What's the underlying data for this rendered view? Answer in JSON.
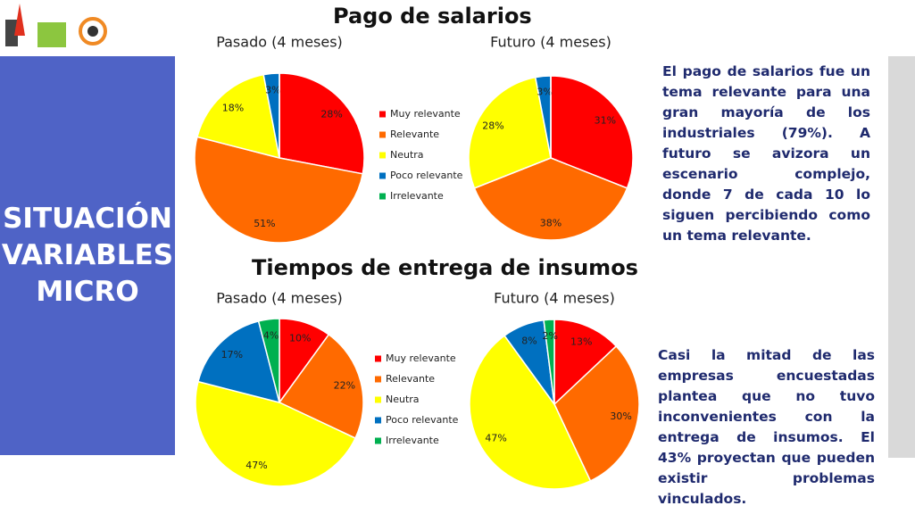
{
  "slide": {
    "side_title": [
      "SITUACIÓN",
      "VARIABLES",
      "MICRO"
    ],
    "sections": [
      "Pago de salarios",
      "Tiempos de entrega de insumos"
    ],
    "paragraphs": [
      "El pago de salarios fue un tema relevante para una gran mayoría de los industriales (79%). A futuro se avizora un escenario complejo, donde 7 de cada 10 lo siguen percibiendo como un tema relevante.",
      "Casi la mitad de las empresas encuestadas plantea que no tuvo inconvenientes con la entrega de insumos. El 43% proyectan que pueden existir problemas vinculados."
    ]
  },
  "chart_data": [
    {
      "type": "pie",
      "title": "Pasado (4 meses)",
      "categories": [
        "Muy relevante",
        "Relevante",
        "Neutra",
        "Poco relevante",
        "Irrelevante"
      ],
      "values": [
        28,
        51,
        18,
        3,
        0
      ],
      "value_labels": [
        "28%",
        "51%",
        "18%",
        "3%",
        null
      ],
      "colors": [
        "#ff0000",
        "#ff6a00",
        "#ffff00",
        "#0070c0",
        "#00b050"
      ]
    },
    {
      "type": "pie",
      "title": "Futuro (4 meses)",
      "categories": [
        "Muy relevante",
        "Relevante",
        "Neutra",
        "Poco relevante",
        "Irrelevante"
      ],
      "values": [
        31,
        38,
        28,
        3,
        0
      ],
      "value_labels": [
        "31%",
        "38%",
        "28%",
        "3%",
        null
      ],
      "colors": [
        "#ff0000",
        "#ff6a00",
        "#ffff00",
        "#0070c0",
        "#00b050"
      ]
    },
    {
      "type": "pie",
      "title": "Pasado (4 meses)",
      "categories": [
        "Muy relevante",
        "Relevante",
        "Neutra",
        "Poco relevante",
        "Irrelevante"
      ],
      "values": [
        10,
        22,
        47,
        17,
        4
      ],
      "value_labels": [
        "10%",
        "22%",
        "47%",
        "17%",
        "4%"
      ],
      "colors": [
        "#ff0000",
        "#ff6a00",
        "#ffff00",
        "#0070c0",
        "#00b050"
      ]
    },
    {
      "type": "pie",
      "title": "Futuro (4 meses)",
      "categories": [
        "Muy relevante",
        "Relevante",
        "Neutra",
        "Poco relevante",
        "Irrelevante"
      ],
      "values": [
        13,
        30,
        47,
        8,
        2
      ],
      "value_labels": [
        "13%",
        "30%",
        "47%",
        "8%",
        "2%"
      ],
      "colors": [
        "#ff0000",
        "#ff6a00",
        "#ffff00",
        "#0070c0",
        "#00b050"
      ]
    }
  ]
}
